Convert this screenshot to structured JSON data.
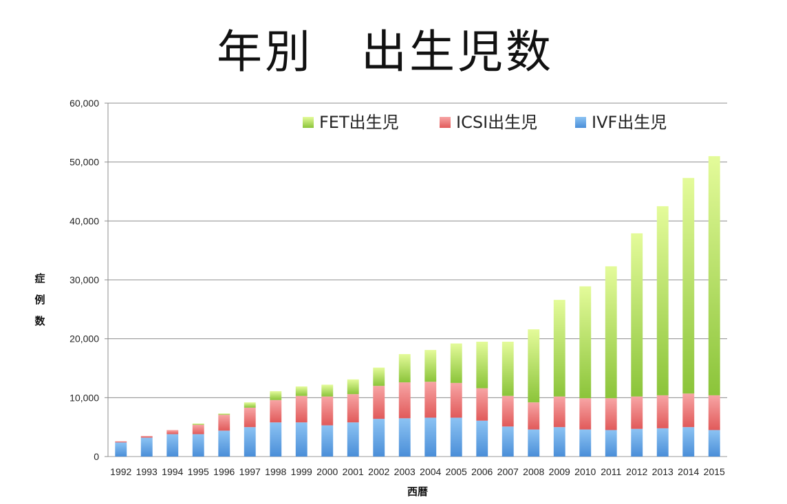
{
  "chart_data": {
    "type": "bar",
    "stacked": true,
    "title": "年別　出生児数",
    "xlabel": "西暦",
    "ylabel": "症例数",
    "ylim": [
      0,
      60000
    ],
    "yticks": [
      0,
      10000,
      20000,
      30000,
      40000,
      50000,
      60000
    ],
    "ytick_labels": [
      "0",
      "10,000",
      "20,000",
      "30,000",
      "40,000",
      "50,000",
      "60,000"
    ],
    "grid": true,
    "legend_position": "top",
    "categories": [
      "1992",
      "1993",
      "1994",
      "1995",
      "1996",
      "1997",
      "1998",
      "1999",
      "2000",
      "2001",
      "2002",
      "2003",
      "2004",
      "2005",
      "2006",
      "2007",
      "2008",
      "2009",
      "2010",
      "2011",
      "2012",
      "2013",
      "2014",
      "2015"
    ],
    "series": [
      {
        "name": "IVF出生児",
        "color": "#5b9bd5",
        "values": [
          2400,
          3200,
          3800,
          3800,
          4400,
          5000,
          5800,
          5800,
          5300,
          5800,
          6400,
          6500,
          6600,
          6600,
          6100,
          5100,
          4600,
          5000,
          4600,
          4500,
          4700,
          4800,
          5000,
          4500
        ]
      },
      {
        "name": "ICSI出生児",
        "color": "#e96565",
        "values": [
          200,
          300,
          700,
          1600,
          2700,
          3300,
          3800,
          4500,
          4900,
          4800,
          5600,
          6100,
          6100,
          5900,
          5500,
          5200,
          4600,
          5200,
          5300,
          5400,
          5500,
          5600,
          5700,
          5900
        ]
      },
      {
        "name": "FET出生児",
        "color": "#8fc93a",
        "values": [
          0,
          0,
          0,
          200,
          200,
          900,
          1500,
          1600,
          2000,
          2500,
          3100,
          4800,
          5400,
          6700,
          7900,
          9200,
          12400,
          16400,
          19000,
          22400,
          27700,
          32100,
          36600,
          40600
        ]
      }
    ]
  }
}
